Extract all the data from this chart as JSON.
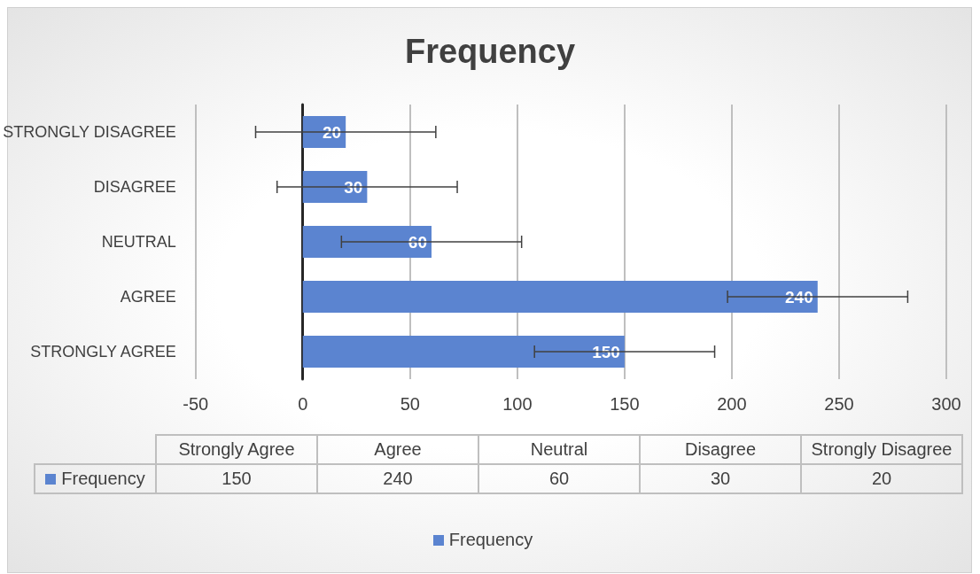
{
  "chart_data": {
    "type": "bar",
    "orientation": "horizontal",
    "title": "Frequency",
    "categories": [
      "STRONGLY DISAGREE",
      "DISAGREE",
      "NEUTRAL",
      "AGREE",
      "STRONGLY AGREE"
    ],
    "series": [
      {
        "name": "Frequency",
        "color": "#5b84d0",
        "values": [
          20,
          30,
          60,
          240,
          150
        ],
        "errors": [
          42,
          42,
          42,
          42,
          42
        ],
        "value_labels": [
          "20",
          "30",
          "60",
          "240",
          "150"
        ]
      }
    ],
    "xlim": [
      -50,
      300
    ],
    "xticks": [
      -50,
      0,
      50,
      100,
      150,
      200,
      250,
      300
    ],
    "grid": "x",
    "legend": "bottom",
    "annotations": [
      "Strongly Agree",
      "Agree",
      "Neutral",
      "Disagree",
      "Strongly Disagree"
    ]
  }
}
